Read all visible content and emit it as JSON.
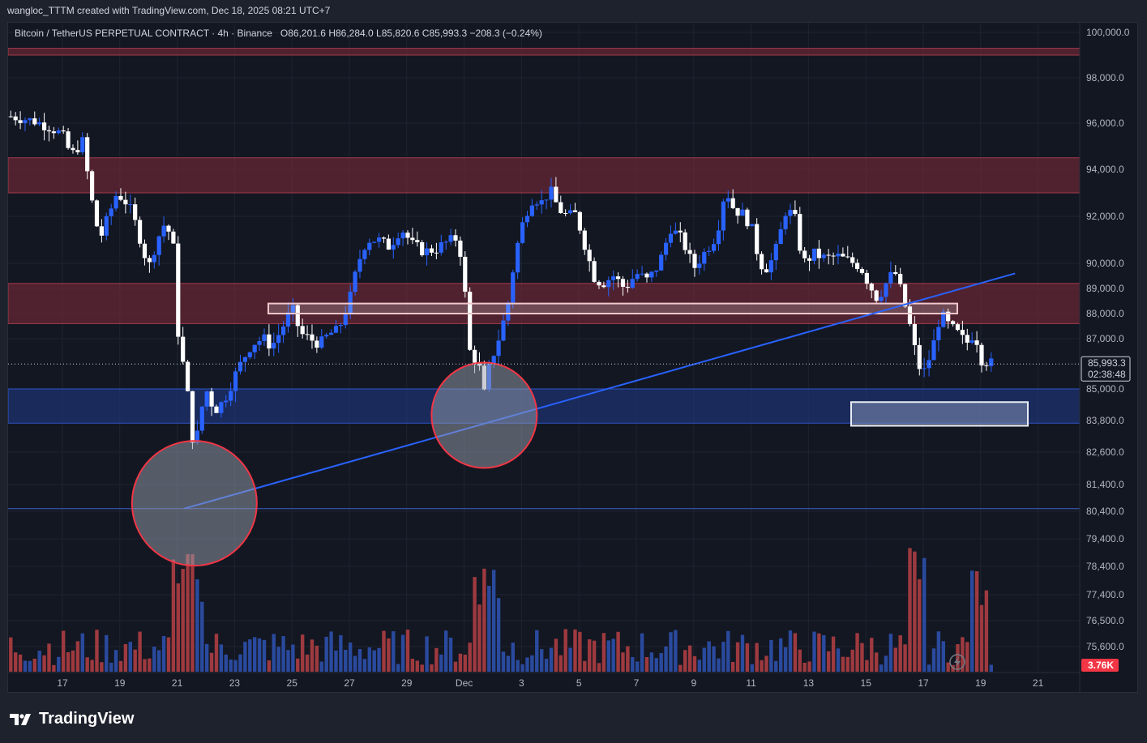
{
  "header": {
    "attribution": "wangloc_TTTM created with TradingView.com, Dec 18, 2025 08:21 UTC+7"
  },
  "legend": {
    "symbol": "Bitcoin / TetherUS PERPETUAL CONTRACT · 4h · Binance",
    "o_label": "O",
    "o_value": "86,201.6",
    "h_label": "H",
    "h_value": "86,284.0",
    "l_label": "L",
    "l_value": "85,820.6",
    "c_label": "C",
    "c_value": "85,993.3",
    "change": "−208.3 (−0.24%)"
  },
  "price_tag": {
    "price": "85,993.3",
    "countdown": "02:38:48"
  },
  "volume_tag": "3.76K",
  "footer": {
    "logo_text": "TradingView"
  },
  "colors": {
    "up": "#2962ff",
    "down": "#ffffff",
    "vol_up": "#2a4a9e",
    "vol_down": "#9e3a3f",
    "supply_zone": "#7a2a38",
    "demand_zone": "#1f3a8a",
    "trendline": "#2962ff",
    "circle_stroke": "#f23645",
    "tag_bg": "#f23645"
  },
  "chart_data": {
    "type": "candlestick",
    "y_axis_ticks": [
      "100,000.0",
      "98,000.0",
      "96,000.0",
      "94,000.0",
      "92,000.0",
      "90,000.0",
      "89,000.0",
      "88,000.0",
      "87,000.0",
      "85,000.0",
      "83,800.0",
      "82,600.0",
      "81,400.0",
      "80,400.0",
      "79,400.0",
      "78,400.0",
      "77,400.0",
      "76,500.0",
      "75,600.0"
    ],
    "x_axis_ticks": [
      "17",
      "19",
      "21",
      "23",
      "25",
      "27",
      "29",
      "Dec",
      "3",
      "5",
      "7",
      "9",
      "11",
      "13",
      "15",
      "17",
      "19",
      "21"
    ],
    "x_tick_days": [
      0,
      2,
      4,
      6,
      8,
      10,
      12,
      14,
      16,
      18,
      20,
      22,
      24,
      26,
      28,
      30,
      32,
      34
    ],
    "last_price": 85993.3,
    "ohlc_keyframes": [
      {
        "day": -1.8,
        "price": 96300
      },
      {
        "day": -1.0,
        "price": 96100
      },
      {
        "day": -0.4,
        "price": 95800
      },
      {
        "day": 0.0,
        "price": 95500
      },
      {
        "day": 0.3,
        "price": 94600
      },
      {
        "day": 0.7,
        "price": 95200
      },
      {
        "day": 1.0,
        "price": 92800
      },
      {
        "day": 1.3,
        "price": 91000
      },
      {
        "day": 1.6,
        "price": 92000
      },
      {
        "day": 1.9,
        "price": 93000
      },
      {
        "day": 2.3,
        "price": 92500
      },
      {
        "day": 2.6,
        "price": 91500
      },
      {
        "day": 3.0,
        "price": 89800
      },
      {
        "day": 3.3,
        "price": 91000
      },
      {
        "day": 3.6,
        "price": 91800
      },
      {
        "day": 3.9,
        "price": 90500
      },
      {
        "day": 4.0,
        "price": 87500
      },
      {
        "day": 4.2,
        "price": 86000
      },
      {
        "day": 4.4,
        "price": 84500
      },
      {
        "day": 4.6,
        "price": 82500
      },
      {
        "day": 4.8,
        "price": 84000
      },
      {
        "day": 5.0,
        "price": 85000
      },
      {
        "day": 5.3,
        "price": 84200
      },
      {
        "day": 5.6,
        "price": 84500
      },
      {
        "day": 6.0,
        "price": 85500
      },
      {
        "day": 6.3,
        "price": 86200
      },
      {
        "day": 6.6,
        "price": 86800
      },
      {
        "day": 7.0,
        "price": 87000
      },
      {
        "day": 7.3,
        "price": 86700
      },
      {
        "day": 7.6,
        "price": 87300
      },
      {
        "day": 8.0,
        "price": 88200
      },
      {
        "day": 8.3,
        "price": 87200
      },
      {
        "day": 8.6,
        "price": 87000
      },
      {
        "day": 9.0,
        "price": 86800
      },
      {
        "day": 9.3,
        "price": 87200
      },
      {
        "day": 9.6,
        "price": 87300
      },
      {
        "day": 10.0,
        "price": 88500
      },
      {
        "day": 10.3,
        "price": 90000
      },
      {
        "day": 10.6,
        "price": 91000
      },
      {
        "day": 11.0,
        "price": 91000
      },
      {
        "day": 11.4,
        "price": 90700
      },
      {
        "day": 11.8,
        "price": 91500
      },
      {
        "day": 12.2,
        "price": 90800
      },
      {
        "day": 12.6,
        "price": 90500
      },
      {
        "day": 13.0,
        "price": 90600
      },
      {
        "day": 13.4,
        "price": 90900
      },
      {
        "day": 13.8,
        "price": 91100
      },
      {
        "day": 14.0,
        "price": 89200
      },
      {
        "day": 14.2,
        "price": 86500
      },
      {
        "day": 14.5,
        "price": 86000
      },
      {
        "day": 14.7,
        "price": 84800
      },
      {
        "day": 14.9,
        "price": 86000
      },
      {
        "day": 15.2,
        "price": 87000
      },
      {
        "day": 15.5,
        "price": 88200
      },
      {
        "day": 15.8,
        "price": 90500
      },
      {
        "day": 16.1,
        "price": 92000
      },
      {
        "day": 16.4,
        "price": 92800
      },
      {
        "day": 16.7,
        "price": 92600
      },
      {
        "day": 17.0,
        "price": 93100
      },
      {
        "day": 17.3,
        "price": 92300
      },
      {
        "day": 17.6,
        "price": 92000
      },
      {
        "day": 17.9,
        "price": 92100
      },
      {
        "day": 18.2,
        "price": 90800
      },
      {
        "day": 18.5,
        "price": 89500
      },
      {
        "day": 18.8,
        "price": 89200
      },
      {
        "day": 19.2,
        "price": 89500
      },
      {
        "day": 19.6,
        "price": 89000
      },
      {
        "day": 20.0,
        "price": 89600
      },
      {
        "day": 20.4,
        "price": 89300
      },
      {
        "day": 20.8,
        "price": 90000
      },
      {
        "day": 21.2,
        "price": 91500
      },
      {
        "day": 21.6,
        "price": 91000
      },
      {
        "day": 22.0,
        "price": 89800
      },
      {
        "day": 22.4,
        "price": 90500
      },
      {
        "day": 22.8,
        "price": 91200
      },
      {
        "day": 23.1,
        "price": 93200
      },
      {
        "day": 23.4,
        "price": 92300
      },
      {
        "day": 23.7,
        "price": 92100
      },
      {
        "day": 24.0,
        "price": 91600
      },
      {
        "day": 24.3,
        "price": 90000
      },
      {
        "day": 24.6,
        "price": 89800
      },
      {
        "day": 24.9,
        "price": 90700
      },
      {
        "day": 25.2,
        "price": 92200
      },
      {
        "day": 25.5,
        "price": 92100
      },
      {
        "day": 25.8,
        "price": 90000
      },
      {
        "day": 26.2,
        "price": 90400
      },
      {
        "day": 26.6,
        "price": 90200
      },
      {
        "day": 27.0,
        "price": 90300
      },
      {
        "day": 27.4,
        "price": 90100
      },
      {
        "day": 27.8,
        "price": 89900
      },
      {
        "day": 28.1,
        "price": 89200
      },
      {
        "day": 28.4,
        "price": 88600
      },
      {
        "day": 28.7,
        "price": 89200
      },
      {
        "day": 29.0,
        "price": 89700
      },
      {
        "day": 29.3,
        "price": 88600
      },
      {
        "day": 29.6,
        "price": 87200
      },
      {
        "day": 29.8,
        "price": 86000
      },
      {
        "day": 30.0,
        "price": 85600
      },
      {
        "day": 30.3,
        "price": 86500
      },
      {
        "day": 30.6,
        "price": 88000
      },
      {
        "day": 30.9,
        "price": 87500
      },
      {
        "day": 31.2,
        "price": 87200
      },
      {
        "day": 31.5,
        "price": 86800
      },
      {
        "day": 31.8,
        "price": 87300
      },
      {
        "day": 32.0,
        "price": 86200
      },
      {
        "day": 32.2,
        "price": 86100
      },
      {
        "day": 32.4,
        "price": 85993
      }
    ],
    "volume": {
      "last_value": "3.76K",
      "description": "volume histogram at bottom, blue = up bars, red = down bars"
    },
    "annotations": {
      "supply_zones": [
        [
          99000,
          99300
        ],
        [
          93000,
          94500
        ],
        [
          87600,
          89200
        ]
      ],
      "demand_zone": [
        83700,
        85000
      ],
      "highlight_box": [
        88000,
        88400
      ],
      "target_box": [
        83600,
        84500
      ],
      "horizontal_line": 80500,
      "trendline": [
        {
          "day": 4.25,
          "price": 80500
        },
        {
          "day": 33.2,
          "price": 89600
        }
      ],
      "circles": [
        {
          "day": 4.6,
          "price": 80700
        },
        {
          "day": 14.7,
          "price": 84000
        }
      ]
    }
  }
}
